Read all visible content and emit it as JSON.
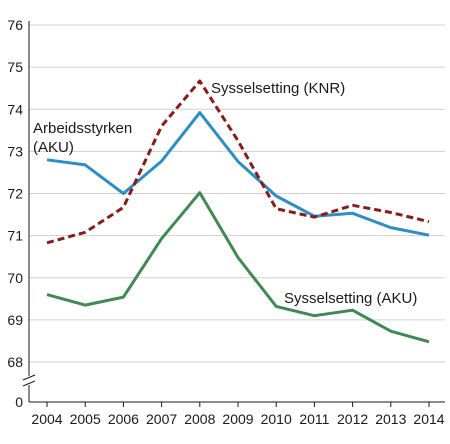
{
  "chart_data": {
    "type": "line",
    "x": [
      2004,
      2005,
      2006,
      2007,
      2008,
      2009,
      2010,
      2011,
      2012,
      2013,
      2014
    ],
    "xtick_labels": [
      "2004",
      "2005",
      "2006",
      "2007",
      "2008",
      "2009",
      "2010",
      "2011",
      "2012",
      "2013",
      "2014"
    ],
    "ylim": [
      68,
      76
    ],
    "ytick_values": [
      68,
      69,
      70,
      71,
      72,
      73,
      74,
      75,
      76
    ],
    "ytick_labels": [
      "68",
      "69",
      "70",
      "71",
      "72",
      "73",
      "74",
      "75",
      "76"
    ],
    "y_axis_break": true,
    "y_break_label": "0",
    "grid": true,
    "series": [
      {
        "name": "Arbeidsstyrken (AKU)",
        "label_lines": [
          "Arbeidsstyrken",
          "(AKU)"
        ],
        "color": "#2a8fc7",
        "style": "solid",
        "values": [
          72.8,
          72.68,
          72.0,
          72.77,
          73.92,
          72.76,
          71.94,
          71.46,
          71.53,
          71.19,
          71.01
        ]
      },
      {
        "name": "Sysselsetting (KNR)",
        "label_lines": [
          "Sysselsetting (KNR)"
        ],
        "color": "#8b1a1a",
        "style": "dashed",
        "values": [
          70.83,
          71.08,
          71.67,
          73.6,
          74.67,
          73.25,
          71.64,
          71.44,
          71.72,
          71.55,
          71.33
        ]
      },
      {
        "name": "Sysselsetting (AKU)",
        "label_lines": [
          "Sysselsetting (AKU)"
        ],
        "color": "#3f8a52",
        "style": "solid",
        "values": [
          69.6,
          69.35,
          69.54,
          70.93,
          72.02,
          70.48,
          69.32,
          69.1,
          69.23,
          68.73,
          68.48
        ]
      }
    ]
  }
}
